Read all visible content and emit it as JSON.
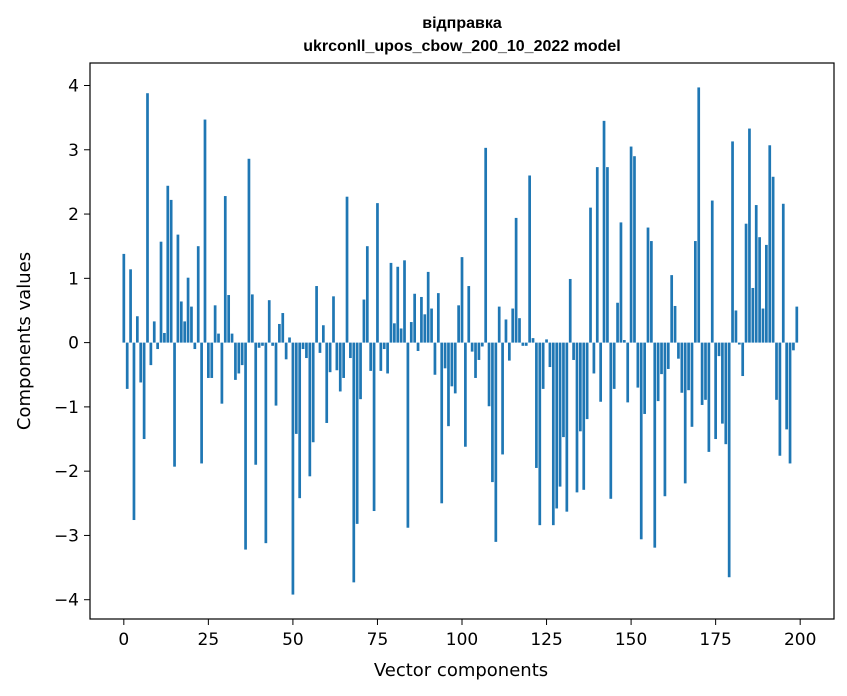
{
  "chart_data": {
    "type": "bar",
    "title_line1": "відправка",
    "title_line2": "ukrconll_upos_cbow_200_10_2022 model",
    "xlabel": "Vector components",
    "ylabel": "Components values",
    "xlim": [
      -10,
      210
    ],
    "ylim": [
      -4.3,
      4.35
    ],
    "xticks": [
      0,
      25,
      50,
      75,
      100,
      125,
      150,
      175,
      200
    ],
    "xtick_labels": [
      "0",
      "25",
      "50",
      "75",
      "100",
      "125",
      "150",
      "175",
      "200"
    ],
    "yticks": [
      -4,
      -3,
      -2,
      -1,
      0,
      1,
      2,
      3,
      4
    ],
    "ytick_labels": [
      "−4",
      "−3",
      "−2",
      "−1",
      "0",
      "1",
      "2",
      "3",
      "4"
    ],
    "bar_color": "#1f77b4",
    "grid": false,
    "x": [
      0,
      1,
      2,
      3,
      4,
      5,
      6,
      7,
      8,
      9,
      10,
      11,
      12,
      13,
      14,
      15,
      16,
      17,
      18,
      19,
      20,
      21,
      22,
      23,
      24,
      25,
      26,
      27,
      28,
      29,
      30,
      31,
      32,
      33,
      34,
      35,
      36,
      37,
      38,
      39,
      40,
      41,
      42,
      43,
      44,
      45,
      46,
      47,
      48,
      49,
      50,
      51,
      52,
      53,
      54,
      55,
      56,
      57,
      58,
      59,
      60,
      61,
      62,
      63,
      64,
      65,
      66,
      67,
      68,
      69,
      70,
      71,
      72,
      73,
      74,
      75,
      76,
      77,
      78,
      79,
      80,
      81,
      82,
      83,
      84,
      85,
      86,
      87,
      88,
      89,
      90,
      91,
      92,
      93,
      94,
      95,
      96,
      97,
      98,
      99,
      100,
      101,
      102,
      103,
      104,
      105,
      106,
      107,
      108,
      109,
      110,
      111,
      112,
      113,
      114,
      115,
      116,
      117,
      118,
      119,
      120,
      121,
      122,
      123,
      124,
      125,
      126,
      127,
      128,
      129,
      130,
      131,
      132,
      133,
      134,
      135,
      136,
      137,
      138,
      139,
      140,
      141,
      142,
      143,
      144,
      145,
      146,
      147,
      148,
      149,
      150,
      151,
      152,
      153,
      154,
      155,
      156,
      157,
      158,
      159,
      160,
      161,
      162,
      163,
      164,
      165,
      166,
      167,
      168,
      169,
      170,
      171,
      172,
      173,
      174,
      175,
      176,
      177,
      178,
      179,
      180,
      181,
      182,
      183,
      184,
      185,
      186,
      187,
      188,
      189,
      190,
      191,
      192,
      193,
      194,
      195,
      196,
      197,
      198,
      199
    ],
    "values": [
      1.38,
      -0.72,
      1.14,
      -2.76,
      0.41,
      -0.62,
      -1.5,
      3.88,
      -0.35,
      0.33,
      -0.1,
      1.57,
      0.15,
      2.44,
      2.22,
      -1.93,
      1.68,
      0.64,
      0.33,
      1.01,
      0.56,
      -0.1,
      1.5,
      -1.88,
      3.47,
      -0.55,
      -0.55,
      0.58,
      0.14,
      -0.95,
      2.28,
      0.74,
      0.14,
      -0.58,
      -0.48,
      -0.35,
      -3.22,
      2.86,
      0.75,
      -1.9,
      -0.08,
      -0.05,
      -3.12,
      0.66,
      -0.05,
      -0.98,
      0.29,
      0.46,
      -0.26,
      0.08,
      -3.92,
      -1.42,
      -2.42,
      -0.1,
      -0.24,
      -2.08,
      -1.55,
      0.88,
      -0.16,
      0.27,
      -1.25,
      -0.46,
      0.72,
      -0.43,
      -0.76,
      -0.55,
      2.27,
      -0.24,
      -3.73,
      -2.82,
      -0.88,
      0.67,
      1.5,
      -0.44,
      -2.62,
      2.17,
      -0.44,
      -0.1,
      -0.48,
      1.24,
      0.3,
      1.18,
      0.22,
      1.28,
      -2.88,
      0.32,
      0.76,
      -0.13,
      0.71,
      0.44,
      1.1,
      0.53,
      -0.5,
      0.77,
      -2.5,
      -0.4,
      -1.3,
      -0.68,
      -0.79,
      0.58,
      1.33,
      -1.62,
      0.88,
      -0.14,
      -0.55,
      -0.27,
      -0.06,
      3.03,
      -0.99,
      -2.17,
      -3.1,
      0.56,
      -1.74,
      0.36,
      -0.28,
      0.53,
      1.94,
      0.38,
      -0.05,
      -0.05,
      2.6,
      0.07,
      -1.95,
      -2.84,
      -0.72,
      0.05,
      -0.38,
      -2.84,
      -2.58,
      -2.24,
      -1.47,
      -2.63,
      0.99,
      -0.27,
      -2.33,
      -1.38,
      -2.29,
      -1.19,
      2.1,
      -0.48,
      2.73,
      -0.92,
      3.45,
      2.73,
      -2.43,
      -0.72,
      0.62,
      1.87,
      0.04,
      -0.93,
      3.05,
      2.9,
      -0.7,
      -3.06,
      -1.11,
      1.79,
      1.58,
      -3.19,
      -0.91,
      -0.49,
      -2.39,
      -0.41,
      1.05,
      0.57,
      -0.25,
      -0.78,
      -2.19,
      -0.74,
      -1.31,
      1.58,
      3.97,
      -0.97,
      -0.89,
      -1.7,
      2.21,
      -1.5,
      -0.21,
      -1.26,
      -1.58,
      -3.65,
      3.13,
      0.5,
      -0.03,
      -0.52,
      1.85,
      3.33,
      0.85,
      2.14,
      1.64,
      0.53,
      1.52,
      3.07,
      2.58,
      -0.89,
      -1.76,
      2.16,
      -1.35,
      -1.88,
      -0.12,
      0.56
    ]
  }
}
